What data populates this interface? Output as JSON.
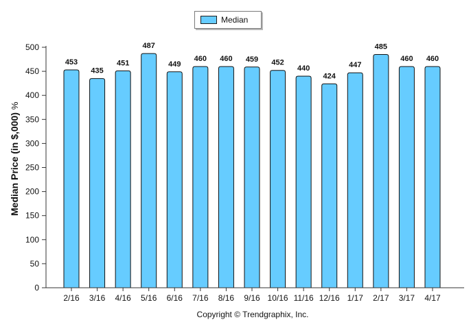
{
  "legend": {
    "label": "Median",
    "color": "#66ccff"
  },
  "y_axis_label": {
    "main": "Median Price (in $,000)",
    "unit": "%"
  },
  "copyright": "Copyright © Trendgraphix, Inc.",
  "chart_data": {
    "type": "bar",
    "categories": [
      "2/16",
      "3/16",
      "4/16",
      "5/16",
      "6/16",
      "7/16",
      "8/16",
      "9/16",
      "10/16",
      "11/16",
      "12/16",
      "1/17",
      "2/17",
      "3/17",
      "4/17"
    ],
    "series": [
      {
        "name": "Median",
        "values": [
          453,
          435,
          451,
          487,
          449,
          460,
          460,
          459,
          452,
          440,
          424,
          447,
          485,
          460,
          460
        ]
      }
    ],
    "ylabel": "Median Price (in $,000) %",
    "ylim": [
      0,
      500
    ],
    "yticks": [
      0,
      50,
      100,
      150,
      200,
      250,
      300,
      350,
      400,
      450,
      500
    ],
    "bar_color": "#66ccff",
    "data_labels": true,
    "legend_position": "top"
  }
}
